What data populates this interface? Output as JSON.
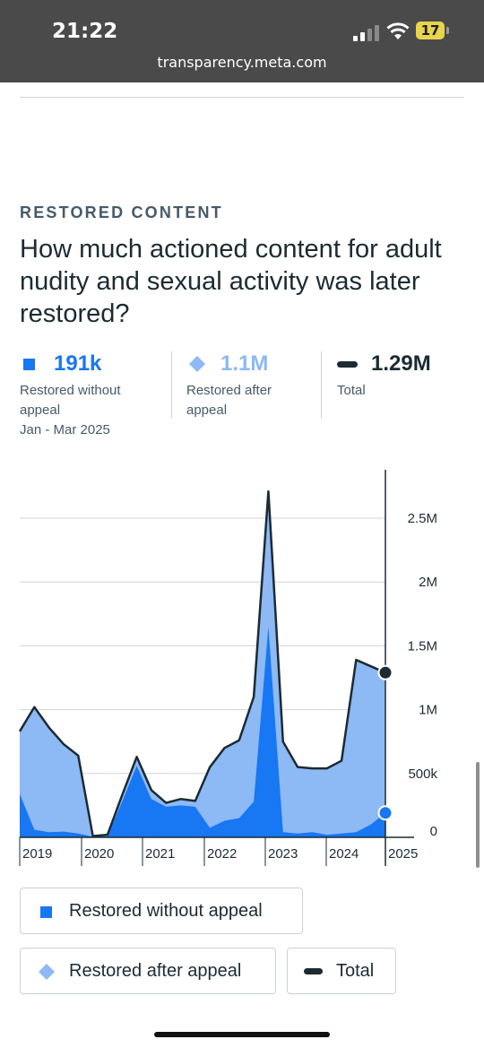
{
  "status_bar": {
    "time": "21:22",
    "url": "transparency.meta.com",
    "battery": "17"
  },
  "section": {
    "eyebrow": "RESTORED CONTENT",
    "headline": "How much actioned content for adult nudity and sexual activity was later restored?"
  },
  "stats": [
    {
      "value": "191k",
      "label_line1": "Restored without",
      "label_line2": "appeal",
      "label_line3": "Jan - Mar 2025",
      "color": "#1877f2",
      "marker": "square"
    },
    {
      "value": "1.1M",
      "label_line1": "Restored after",
      "label_line2": "appeal",
      "color": "#8db9f5",
      "marker": "diamond"
    },
    {
      "value": "1.29M",
      "label_line1": "Total",
      "color": "#1c2b33",
      "marker": "dash"
    }
  ],
  "legend": {
    "without_appeal": "Restored without appeal",
    "after_appeal": "Restored after appeal",
    "total": "Total"
  },
  "colors": {
    "without_appeal": "#1877f2",
    "after_appeal": "#8db9f5",
    "total": "#1c2b33",
    "grid": "#d0d5d8",
    "text": "#1c2b33"
  },
  "chart_data": {
    "type": "area",
    "y_ticks": [
      {
        "value": 0,
        "label": "0"
      },
      {
        "value": 500000,
        "label": "500k"
      },
      {
        "value": 1000000,
        "label": "1M"
      },
      {
        "value": 1500000,
        "label": "1.5M"
      },
      {
        "value": 2000000,
        "label": "2M"
      },
      {
        "value": 2500000,
        "label": "2.5M"
      }
    ],
    "x_ticks": [
      "2019",
      "2020",
      "2021",
      "2022",
      "2023",
      "2024",
      "2025"
    ],
    "ylim": [
      0,
      2850000
    ],
    "x": [
      "2018 Q4",
      "2019 Q1",
      "2019 Q2",
      "2019 Q3",
      "2019 Q4",
      "2020 Q1",
      "2020 Q2",
      "2020 Q3",
      "2020 Q4",
      "2021 Q1",
      "2021 Q2",
      "2021 Q3",
      "2021 Q4",
      "2022 Q1",
      "2022 Q2",
      "2022 Q3",
      "2022 Q4",
      "2023 Q1",
      "2023 Q2",
      "2023 Q3",
      "2023 Q4",
      "2024 Q1",
      "2024 Q2",
      "2024 Q3",
      "2024 Q4",
      "2025 Q1"
    ],
    "series": [
      {
        "name": "Restored without appeal",
        "values": [
          340000,
          60000,
          40000,
          45000,
          30000,
          5000,
          10000,
          280000,
          560000,
          300000,
          240000,
          250000,
          240000,
          75000,
          130000,
          150000,
          280000,
          1650000,
          40000,
          30000,
          40000,
          20000,
          30000,
          40000,
          100000,
          191000
        ]
      },
      {
        "name": "Total",
        "values": [
          830000,
          1020000,
          860000,
          730000,
          640000,
          10000,
          20000,
          330000,
          630000,
          370000,
          270000,
          300000,
          285000,
          550000,
          700000,
          760000,
          1100000,
          2710000,
          750000,
          550000,
          540000,
          540000,
          600000,
          1390000,
          1340000,
          1290000
        ]
      }
    ],
    "grid": true
  }
}
